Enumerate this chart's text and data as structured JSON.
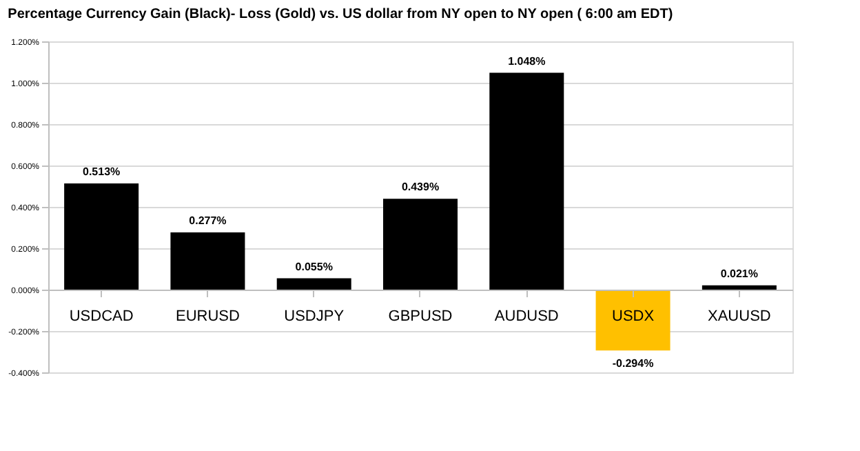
{
  "chart_data": {
    "type": "bar",
    "title": "Percentage Currency  Gain (Black)- Loss (Gold)  vs. US dollar from  NY  open to  NY open ( 6:00 am EDT)",
    "categories": [
      "USDCAD",
      "EURUSD",
      "USDJPY",
      "GBPUSD",
      "AUDUSD",
      "USDX",
      "XAUUSD"
    ],
    "values": [
      0.513,
      0.277,
      0.055,
      0.439,
      1.048,
      -0.294,
      0.021
    ],
    "colors": [
      "#000000",
      "#000000",
      "#000000",
      "#000000",
      "#000000",
      "#ffc000",
      "#000000"
    ],
    "value_labels": [
      "0.513%",
      "0.277%",
      "0.055%",
      "0.439%",
      "1.048%",
      "-0.294%",
      "0.021%"
    ],
    "ylim": [
      -0.4,
      1.2
    ],
    "yticks": [
      {
        "value": -0.4,
        "label": "-0.400%"
      },
      {
        "value": -0.2,
        "label": "-0.200%"
      },
      {
        "value": 0,
        "label": "0.000%"
      },
      {
        "value": 0.2,
        "label": "0.200%"
      },
      {
        "value": 0.4,
        "label": "0.400%"
      },
      {
        "value": 0.6,
        "label": "0.600%"
      },
      {
        "value": 0.8,
        "label": "0.800%"
      },
      {
        "value": 1.0,
        "label": "1.000%"
      },
      {
        "value": 1.2,
        "label": "1.200%"
      }
    ],
    "grid": "y"
  }
}
